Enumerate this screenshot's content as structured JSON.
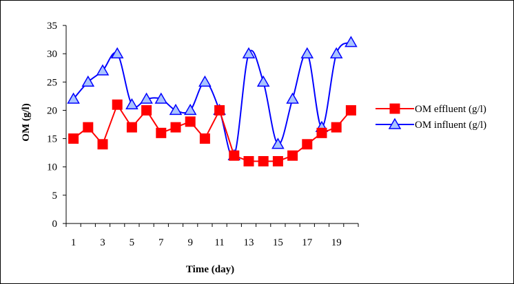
{
  "chart_data": {
    "type": "line",
    "title": "",
    "xlabel": "Time (day)",
    "ylabel": "OM (g/l)",
    "x": [
      1,
      2,
      3,
      4,
      5,
      6,
      7,
      8,
      9,
      10,
      11,
      12,
      13,
      14,
      15,
      16,
      17,
      18,
      19,
      20
    ],
    "x_tick_labels": [
      "1",
      "3",
      "5",
      "7",
      "9",
      "11",
      "13",
      "15",
      "17",
      "19"
    ],
    "y_tick_labels": [
      "0",
      "5",
      "10",
      "15",
      "20",
      "25",
      "30",
      "35"
    ],
    "ylim": [
      0,
      35
    ],
    "grid": false,
    "legend_position": "right",
    "series": [
      {
        "name": "OM effluent (g/l)",
        "color": "#ff0000",
        "marker": "square",
        "smooth": false,
        "values": [
          15,
          17,
          14,
          21,
          17,
          20,
          16,
          17,
          18,
          15,
          20,
          12,
          11,
          11,
          11,
          12,
          14,
          16,
          17,
          20
        ]
      },
      {
        "name": "OM influent (g/l)",
        "color": "#0000ff",
        "marker_fill": "#a9c4ff",
        "marker": "triangle",
        "smooth": true,
        "values": [
          22,
          25,
          27,
          30,
          21,
          22,
          22,
          20,
          20,
          25,
          20,
          12,
          30,
          25,
          14,
          22,
          30,
          17,
          30,
          32
        ]
      }
    ]
  }
}
